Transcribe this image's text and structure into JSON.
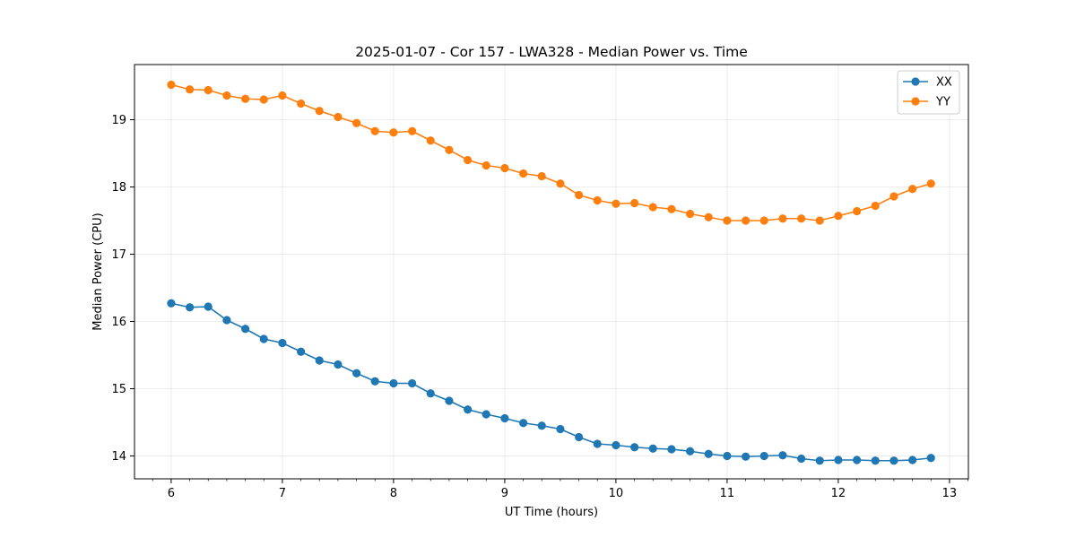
{
  "chart_data": {
    "type": "line",
    "title": "2025-01-07 - Cor 157 - LWA328 - Median Power vs. Time",
    "xlabel": "UT Time (hours)",
    "ylabel": "Median Power (CPU)",
    "xlim": [
      5.67,
      13.17
    ],
    "ylim": [
      13.66,
      19.82
    ],
    "xticks": [
      6,
      7,
      8,
      9,
      10,
      11,
      12,
      13
    ],
    "yticks": [
      14,
      15,
      16,
      17,
      18,
      19
    ],
    "grid": true,
    "legend_position": "top-right",
    "x": [
      6.0,
      6.167,
      6.333,
      6.5,
      6.667,
      6.833,
      7.0,
      7.167,
      7.333,
      7.5,
      7.667,
      7.833,
      8.0,
      8.167,
      8.333,
      8.5,
      8.667,
      8.833,
      9.0,
      9.167,
      9.333,
      9.5,
      9.667,
      9.833,
      10.0,
      10.167,
      10.333,
      10.5,
      10.667,
      10.833,
      11.0,
      11.167,
      11.333,
      11.5,
      11.667,
      11.833,
      12.0,
      12.167,
      12.333,
      12.5,
      12.667,
      12.833
    ],
    "series": [
      {
        "name": "XX",
        "color": "#1f77b4",
        "values": [
          16.27,
          16.21,
          16.22,
          16.02,
          15.89,
          15.74,
          15.68,
          15.55,
          15.42,
          15.36,
          15.23,
          15.11,
          15.08,
          15.08,
          14.93,
          14.82,
          14.69,
          14.62,
          14.56,
          14.49,
          14.45,
          14.4,
          14.28,
          14.18,
          14.16,
          14.13,
          14.11,
          14.1,
          14.07,
          14.03,
          14.0,
          13.99,
          14.0,
          14.01,
          13.96,
          13.93,
          13.94,
          13.94,
          13.93,
          13.93,
          13.94,
          13.97
        ]
      },
      {
        "name": "YY",
        "color": "#ff7f0e",
        "values": [
          19.52,
          19.45,
          19.44,
          19.36,
          19.31,
          19.3,
          19.36,
          19.24,
          19.13,
          19.04,
          18.95,
          18.83,
          18.81,
          18.83,
          18.69,
          18.55,
          18.4,
          18.32,
          18.28,
          18.2,
          18.16,
          18.05,
          17.88,
          17.8,
          17.75,
          17.76,
          17.7,
          17.67,
          17.6,
          17.55,
          17.5,
          17.5,
          17.5,
          17.53,
          17.53,
          17.5,
          17.57,
          17.64,
          17.72,
          17.86,
          17.97,
          18.05
        ]
      }
    ]
  }
}
